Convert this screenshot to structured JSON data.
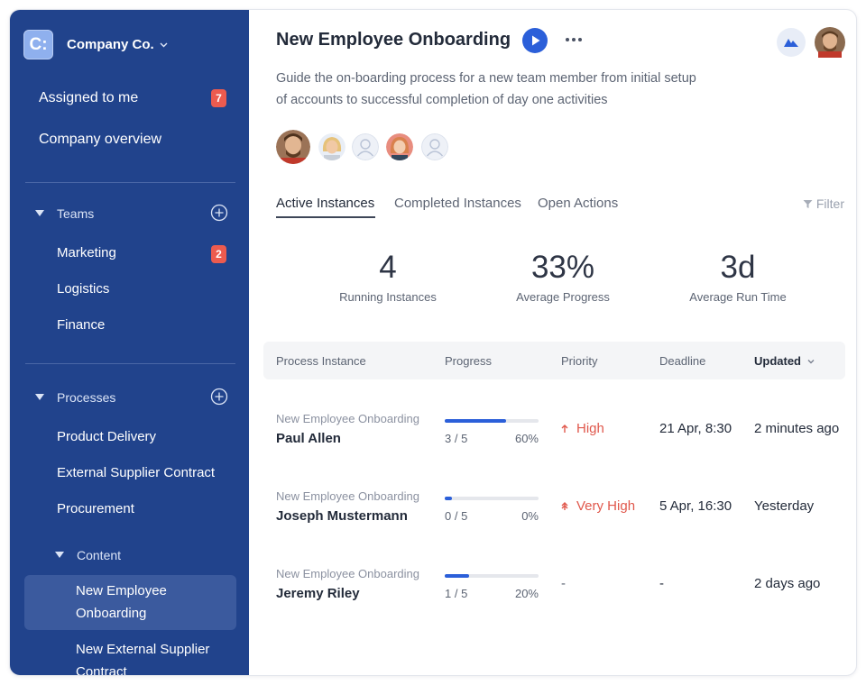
{
  "sidebar": {
    "company_logo_letter": "C:",
    "company_name": "Company Co.",
    "top_items": [
      {
        "label": "Assigned to me",
        "badge": "7"
      },
      {
        "label": "Company overview"
      }
    ],
    "teams": {
      "label": "Teams",
      "items": [
        {
          "label": "Marketing",
          "badge": "2"
        },
        {
          "label": "Logistics"
        },
        {
          "label": "Finance"
        }
      ]
    },
    "processes": {
      "label": "Processes",
      "items": [
        {
          "label": "Product Delivery"
        },
        {
          "label": "External Supplier Contract"
        },
        {
          "label": "Procurement"
        }
      ],
      "content": {
        "label": "Content",
        "items": [
          {
            "label": "New Employee Onboarding",
            "active": true
          },
          {
            "label": "New External Supplier Contract"
          }
        ]
      }
    }
  },
  "header": {
    "title": "New Employee Onboarding",
    "description": "Guide the on-boarding process for a new team member from initial setup of accounts to successful completion of day one activities"
  },
  "tabs": [
    {
      "label": "Active Instances",
      "active": true
    },
    {
      "label": "Completed Instances"
    },
    {
      "label": "Open Actions"
    }
  ],
  "filter_label": "Filter",
  "stats": [
    {
      "value": "4",
      "label": "Running Instances"
    },
    {
      "value": "33%",
      "label": "Average Progress"
    },
    {
      "value": "3d",
      "label": "Average Run Time"
    }
  ],
  "table": {
    "columns": [
      "Process Instance",
      "Progress",
      "Priority",
      "Deadline",
      "Updated"
    ],
    "rows": [
      {
        "process": "New Employee Onboarding",
        "name": "Paul Allen",
        "steps": "3 / 5",
        "percent": "60%",
        "progress": 0.65,
        "priority": "High",
        "priority_icon": "arrow-up-icon",
        "deadline": "21 Apr, 8:30",
        "updated": "2 minutes ago"
      },
      {
        "process": "New Employee Onboarding",
        "name": "Joseph Mustermann",
        "steps": "0 / 5",
        "percent": "0%",
        "progress": 0.08,
        "priority": "Very High",
        "priority_icon": "double-arrow-up-icon",
        "deadline": "5 Apr, 16:30",
        "updated": "Yesterday"
      },
      {
        "process": "New Employee Onboarding",
        "name": "Jeremy Riley",
        "steps": "1 / 5",
        "percent": "20%",
        "progress": 0.26,
        "priority": "-",
        "priority_icon": "",
        "deadline": "-",
        "updated": "2 days ago"
      }
    ]
  },
  "colors": {
    "sidebar_bg": "#21438c",
    "accent": "#2b5fd9",
    "badge": "#ec5b4f",
    "priority": "#e0584c"
  }
}
